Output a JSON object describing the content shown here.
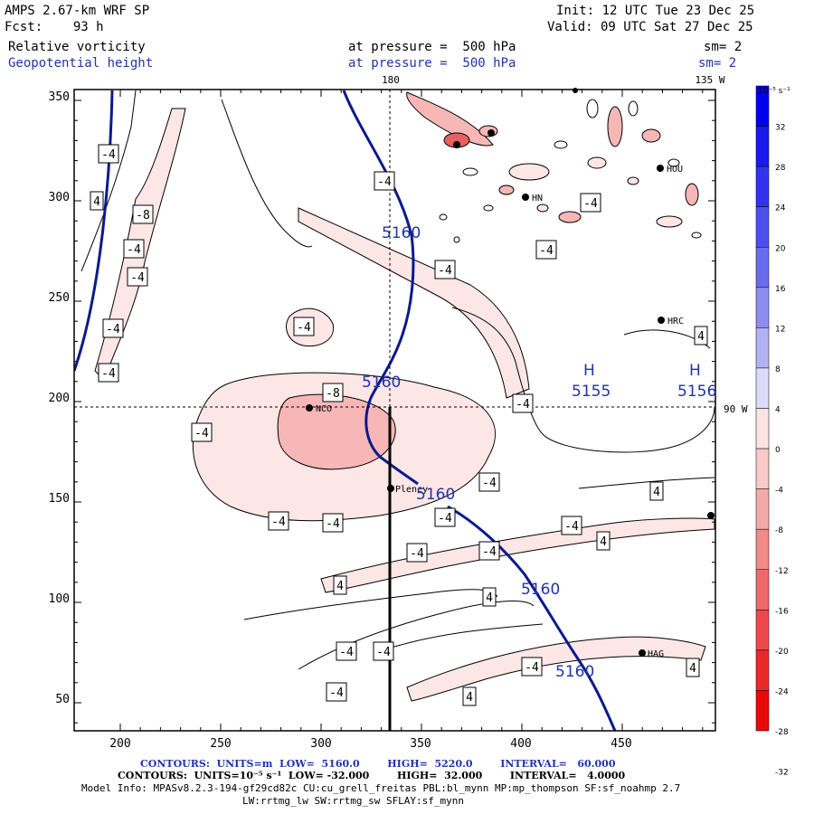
{
  "header": {
    "model": "AMPS 2.67-km WRF SP",
    "init": "Init: 12 UTC Tue 23 Dec 25",
    "fcst": "Fcst:    93 h",
    "valid": "Valid: 09 UTC Sat 27 Dec 25",
    "field1": "Relative vorticity",
    "field2": "Geopotential height",
    "pressure1": "at pressure =  500 hPa",
    "pressure2": "at pressure =  500 hPa",
    "sm1": "sm= 2",
    "sm2": "sm= 2"
  },
  "axes": {
    "x_ticks": [
      "200",
      "250",
      "300",
      "350",
      "400",
      "450"
    ],
    "y_ticks": [
      "350",
      "300",
      "250",
      "200",
      "150",
      "100",
      "50"
    ],
    "lon_180": "180",
    "lon_135w": "135 W",
    "lon_90w": "90 W"
  },
  "colorbar": {
    "units": "10⁻⁵ s⁻¹",
    "labels": [
      "32",
      "28",
      "24",
      "20",
      "16",
      "12",
      "8",
      "4",
      "0",
      "-4",
      "-8",
      "-12",
      "-16",
      "-20",
      "-24",
      "-28",
      "-32"
    ]
  },
  "map": {
    "stations": [
      "HRC",
      "NCO",
      "Plency",
      "HOU",
      "HAG",
      "HN"
    ],
    "height_labels": [
      "5160",
      "5160",
      "5160",
      "5160",
      "5160"
    ],
    "high1_mark": "H",
    "high1_value": "5155",
    "high2_mark": "H",
    "high2_value": "5156",
    "vort_labels": [
      "-4",
      "4",
      "-8",
      "-4",
      "-4",
      "-4",
      "-4",
      "-8",
      "-4",
      "-4",
      "-4",
      "-4",
      "-4",
      "-4",
      "-4",
      "-4",
      "-4",
      "-4",
      "-4",
      "-4",
      "-4",
      "-4",
      "4",
      "4",
      "4",
      "4",
      "-4",
      "-4",
      "-4",
      "4",
      "-4",
      "4",
      "4"
    ]
  },
  "footer": {
    "line1": "CONTOURS:  UNITS=m  LOW=  5160.0        HIGH=  5220.0        INTERVAL=   60.000",
    "line2": "CONTOURS:  UNITS=10⁻⁵ s⁻¹  LOW= -32.000        HIGH=  32.000        INTERVAL=   4.0000",
    "line3": "Model Info: MPASv8.2.3-194-gf29cd82c CU:cu_grell_freitas PBL:bl_mynn MP:mp_thompson SF:sf_noahmp 2.7",
    "line4": "LW:rrtmg_lw SW:rrtmg_sw SFLAY:sf_mynn"
  },
  "colors": {
    "height_contour": "#0a1a8c",
    "neg_fill_light": "#fde6e6",
    "neg_fill_mid": "#f7b7b7",
    "neg_fill_dark": "#e86060"
  }
}
